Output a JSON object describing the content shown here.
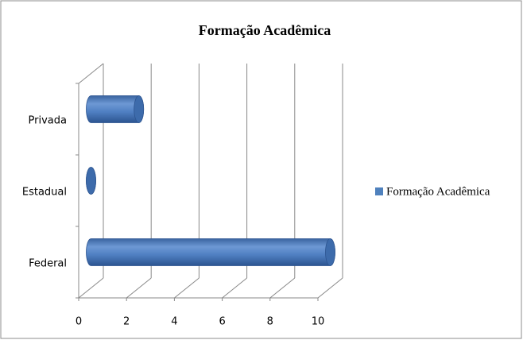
{
  "chart_data": {
    "type": "bar",
    "title": "Formação Acadêmica",
    "categories": [
      "Federal",
      "Estadual",
      "Privada"
    ],
    "series": [
      {
        "name": "Formação Acadêmica",
        "color": "#4f81bd",
        "values": [
          10,
          0,
          2
        ]
      }
    ],
    "xlim": [
      0,
      10
    ],
    "xticks": [
      0,
      2,
      4,
      6,
      8,
      10
    ],
    "grid": true,
    "legend": "right"
  }
}
